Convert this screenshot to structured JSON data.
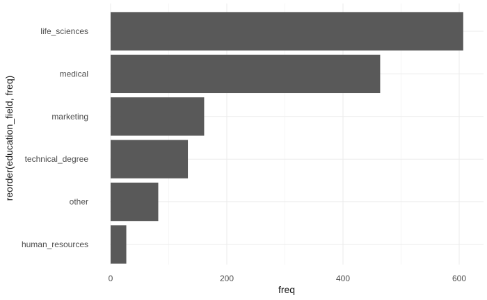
{
  "chart_data": {
    "type": "bar",
    "orientation": "horizontal",
    "categories": [
      "human_resources",
      "other",
      "technical_degree",
      "marketing",
      "medical",
      "life_sciences"
    ],
    "values": [
      27,
      82,
      133,
      161,
      464,
      607
    ],
    "xlabel": "freq",
    "ylabel": "reorder(education_field, freq)",
    "xlim": [
      0,
      640
    ],
    "xticks": [
      0,
      200,
      400,
      600
    ],
    "grid": true,
    "bar_color": "#595959",
    "grid_color": "#ebebeb",
    "background": "#ffffff"
  }
}
